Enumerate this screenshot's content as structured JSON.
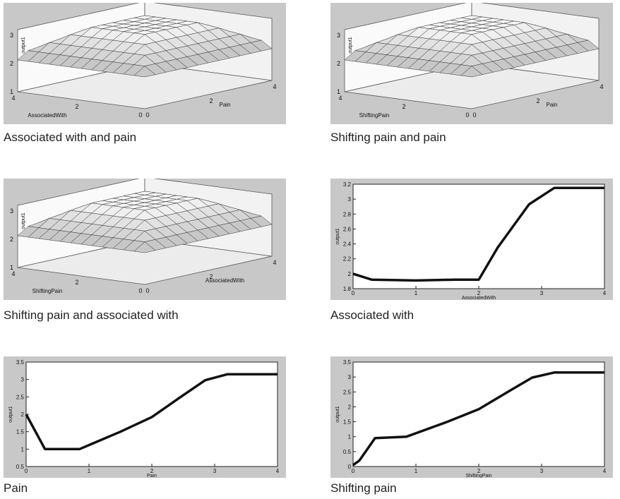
{
  "figures": [
    {
      "caption": "Associated with and pain",
      "chart_data": {
        "type": "surface",
        "zlabel": "output1",
        "xlabel": "Pain",
        "ylabel": "AssociatedWith",
        "xlim": [
          0,
          4
        ],
        "ylim": [
          0,
          4
        ],
        "zlim": [
          1,
          3
        ],
        "xticks": [
          "0",
          "2",
          "4"
        ],
        "yticks": [
          "0",
          "2",
          "4"
        ],
        "zticks": [
          "1",
          "2",
          "3"
        ]
      }
    },
    {
      "caption": "Shifting pain and pain",
      "chart_data": {
        "type": "surface",
        "zlabel": "output1",
        "xlabel": "Pain",
        "ylabel": "ShiftingPain",
        "xlim": [
          0,
          4
        ],
        "ylim": [
          0,
          4
        ],
        "zlim": [
          1,
          3
        ],
        "xticks": [
          "0",
          "2",
          "4"
        ],
        "yticks": [
          "0",
          "2",
          "4"
        ],
        "zticks": [
          "1",
          "2",
          "3"
        ]
      }
    },
    {
      "caption": "Shifting pain and associated with",
      "chart_data": {
        "type": "surface",
        "zlabel": "output1",
        "xlabel": "AssociatedWith",
        "ylabel": "ShiftingPain",
        "xlim": [
          0,
          4
        ],
        "ylim": [
          0,
          4
        ],
        "zlim": [
          1,
          3
        ],
        "xticks": [
          "0",
          "2",
          "4"
        ],
        "yticks": [
          "0",
          "2",
          "4"
        ],
        "zticks": [
          "1",
          "2",
          "3"
        ]
      }
    },
    {
      "caption": "Associated with",
      "chart_data": {
        "type": "line",
        "xlabel": "AssociatedWith",
        "ylabel": "output1",
        "xlim": [
          0,
          4
        ],
        "ylim": [
          1.8,
          3.2
        ],
        "xticks": [
          0,
          1,
          2,
          3,
          4
        ],
        "yticks": [
          1.8,
          2,
          2.2,
          2.4,
          2.6,
          2.8,
          3,
          3.2
        ],
        "x": [
          0,
          0.3,
          1,
          1.6,
          2,
          2.3,
          2.8,
          3.2,
          4
        ],
        "y": [
          2.0,
          1.92,
          1.91,
          1.92,
          1.92,
          2.35,
          2.93,
          3.15,
          3.15
        ]
      }
    },
    {
      "caption": "Pain",
      "chart_data": {
        "type": "line",
        "xlabel": "Pain",
        "ylabel": "output1",
        "xlim": [
          0,
          4
        ],
        "ylim": [
          0.5,
          3.5
        ],
        "xticks": [
          0,
          1,
          2,
          3,
          4
        ],
        "yticks": [
          0.5,
          1,
          1.5,
          2,
          2.5,
          3,
          3.5
        ],
        "x": [
          0,
          0.3,
          0.85,
          1.5,
          2,
          2.5,
          2.85,
          3.2,
          4
        ],
        "y": [
          2.0,
          1.0,
          1.0,
          1.5,
          1.92,
          2.55,
          2.98,
          3.15,
          3.15
        ]
      }
    },
    {
      "caption": "Shifting pain",
      "chart_data": {
        "type": "line",
        "xlabel": "ShiftingPain",
        "ylabel": "output1",
        "xlim": [
          0,
          4
        ],
        "ylim": [
          0,
          3.5
        ],
        "xticks": [
          0,
          1,
          2,
          3,
          4
        ],
        "yticks": [
          0,
          0.5,
          1,
          1.5,
          2,
          2.5,
          3,
          3.5
        ],
        "x": [
          0,
          0.1,
          0.35,
          0.85,
          1.5,
          2,
          2.5,
          2.85,
          3.2,
          4
        ],
        "y": [
          0.05,
          0.2,
          0.95,
          1.0,
          1.5,
          1.92,
          2.55,
          2.98,
          3.15,
          3.15
        ]
      }
    }
  ]
}
